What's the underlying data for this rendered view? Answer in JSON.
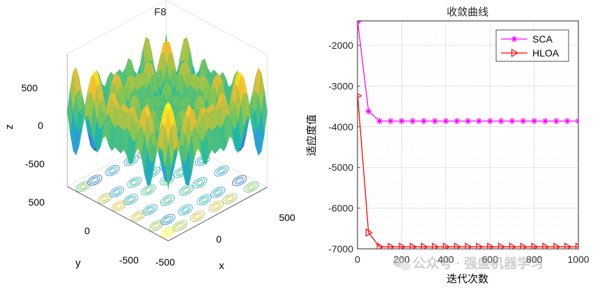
{
  "left_plot": {
    "title": "F8",
    "xlabel": "x",
    "ylabel": "y",
    "zlabel": "z",
    "x_ticks": [
      "-500",
      "0",
      "500"
    ],
    "y_ticks": [
      "-500",
      "0",
      "500"
    ],
    "z_ticks": [
      "500",
      "0",
      "-500"
    ],
    "colormap": [
      "#3e26a8",
      "#2f97e6",
      "#1bb9a8",
      "#80c653",
      "#f0bc33",
      "#f9fb15"
    ]
  },
  "watermark": {
    "text": "公众号 · 强盛机器学习",
    "icon": "wechat-icon"
  },
  "chart_data": {
    "type": "line",
    "title": "收敛曲线",
    "xlabel": "迭代次数",
    "ylabel": "适应度值",
    "xlim": [
      0,
      1000
    ],
    "ylim": [
      -7000,
      -1400
    ],
    "x_ticks": [
      0,
      200,
      400,
      600,
      800,
      1000
    ],
    "y_ticks": [
      -2000,
      -3000,
      -4000,
      -5000,
      -6000,
      -7000
    ],
    "grid": true,
    "legend_position": "top-right",
    "x": [
      1,
      50,
      100,
      150,
      200,
      250,
      300,
      350,
      400,
      450,
      500,
      550,
      600,
      650,
      700,
      750,
      800,
      850,
      900,
      950,
      1000
    ],
    "series": [
      {
        "name": "SCA",
        "color": "#ff00ff",
        "marker": "asterisk",
        "values": [
          -1420,
          -3620,
          -3860,
          -3860,
          -3860,
          -3860,
          -3860,
          -3860,
          -3860,
          -3860,
          -3860,
          -3860,
          -3860,
          -3860,
          -3860,
          -3860,
          -3860,
          -3860,
          -3860,
          -3860,
          -3860
        ]
      },
      {
        "name": "HLOA",
        "color": "#ff0000",
        "marker": "triangle-right",
        "values": [
          -3240,
          -6600,
          -6950,
          -6950,
          -6950,
          -6950,
          -6950,
          -6950,
          -6950,
          -6950,
          -6950,
          -6950,
          -6950,
          -6950,
          -6950,
          -6950,
          -6950,
          -6950,
          -6950,
          -6950,
          -6950
        ]
      }
    ]
  }
}
